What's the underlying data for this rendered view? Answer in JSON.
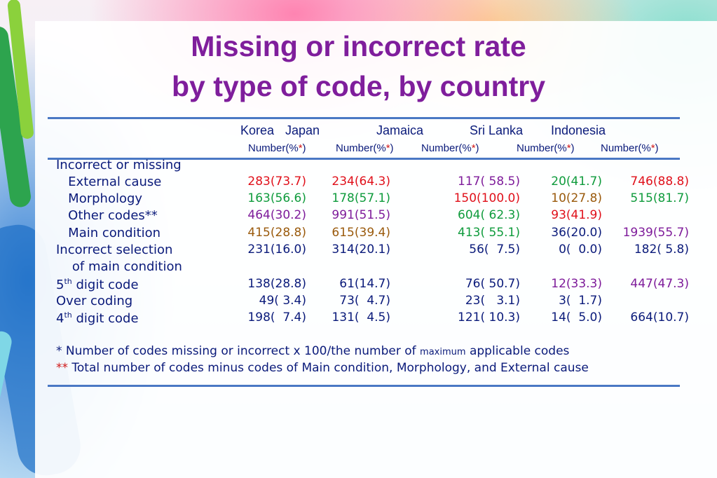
{
  "colors": {
    "title": "#7f1e9c",
    "text": "#0a1a7a",
    "red": "#e0101a",
    "green": "#0f9b3c",
    "purple": "#7e1b9a",
    "brown": "#9a5a0c",
    "dark": "#0a1a7a"
  },
  "title_line1": "Missing or incorrect rate",
  "title_line2": "by type of code, by country",
  "countries": [
    "Korea",
    "Japan",
    "Jamaica",
    "Sri Lanka",
    "Indonesia"
  ],
  "subheader": "Number(%",
  "subheader_star": "*",
  "subheader_close": ")",
  "rows": [
    {
      "label": "Incorrect or missing",
      "cells": []
    },
    {
      "label": "   External cause",
      "cells": [
        {
          "v": "283(73.7)",
          "c": "red"
        },
        {
          "v": "234(64.3)",
          "c": "red"
        },
        {
          "v": "117( 58.5)",
          "c": "purple"
        },
        {
          "v": "20(41.7)",
          "c": "green"
        },
        {
          "v": "746(88.8)",
          "c": "red"
        }
      ]
    },
    {
      "label": "   Morphology",
      "cells": [
        {
          "v": "163(56.6)",
          "c": "green"
        },
        {
          "v": "178(57.1)",
          "c": "green"
        },
        {
          "v": "150(100.0)",
          "c": "red"
        },
        {
          "v": "10(27.8)",
          "c": "brown"
        },
        {
          "v": "515(81.7)",
          "c": "green"
        }
      ]
    },
    {
      "label": "   Other codes**",
      "cells": [
        {
          "v": "464(30.2)",
          "c": "purple"
        },
        {
          "v": "991(51.5)",
          "c": "purple"
        },
        {
          "v": "604( 62.3)",
          "c": "green"
        },
        {
          "v": "93(41.9)",
          "c": "red"
        },
        {
          "v": "",
          "c": "dark"
        }
      ]
    },
    {
      "label": "   Main condition",
      "cells": [
        {
          "v": "415(28.8)",
          "c": "brown"
        },
        {
          "v": "615(39.4)",
          "c": "brown"
        },
        {
          "v": "413( 55.1)",
          "c": "green"
        },
        {
          "v": "36(20.0)",
          "c": "dark"
        },
        {
          "v": "1939(55.7)",
          "c": "purple"
        }
      ]
    },
    {
      "label": "Incorrect selection",
      "cells": [
        {
          "v": "231(16.0)",
          "c": "dark"
        },
        {
          "v": "314(20.1)",
          "c": "dark"
        },
        {
          "v": "56(  7.5)",
          "c": "dark"
        },
        {
          "v": "0(  0.0)",
          "c": "dark"
        },
        {
          "v": "182( 5.8)",
          "c": "dark"
        }
      ]
    },
    {
      "label": "    of main condition",
      "cells": []
    },
    {
      "label": "5th digit code",
      "cells": [
        {
          "v": "138(28.8)",
          "c": "dark"
        },
        {
          "v": "61(14.7)",
          "c": "dark"
        },
        {
          "v": "76( 50.7)",
          "c": "dark"
        },
        {
          "v": "12(33.3)",
          "c": "purple"
        },
        {
          "v": "447(47.3)",
          "c": "purple"
        }
      ]
    },
    {
      "label": "Over coding",
      "cells": [
        {
          "v": "49( 3.4)",
          "c": "dark"
        },
        {
          "v": "73(  4.7)",
          "c": "dark"
        },
        {
          "v": "23(   3.1)",
          "c": "dark"
        },
        {
          "v": "3(  1.7)",
          "c": "dark"
        },
        {
          "v": "",
          "c": "dark"
        }
      ]
    },
    {
      "label": "4th digit code",
      "cells": [
        {
          "v": "198(  7.4)",
          "c": "dark"
        },
        {
          "v": "131(  4.5)",
          "c": "dark"
        },
        {
          "v": "121( 10.3)",
          "c": "dark"
        },
        {
          "v": "14(  5.0)",
          "c": "dark"
        },
        {
          "v": "664(10.7)",
          "c": "dark"
        }
      ]
    }
  ],
  "note1_a": "* Number of codes missing or incorrect x 100/the number of ",
  "note1_b": "maximum",
  "note1_c": " applicable codes",
  "note2_star": "**",
  "note2_text": " Total number of codes minus codes of Main condition, Morphology, and External cause"
}
